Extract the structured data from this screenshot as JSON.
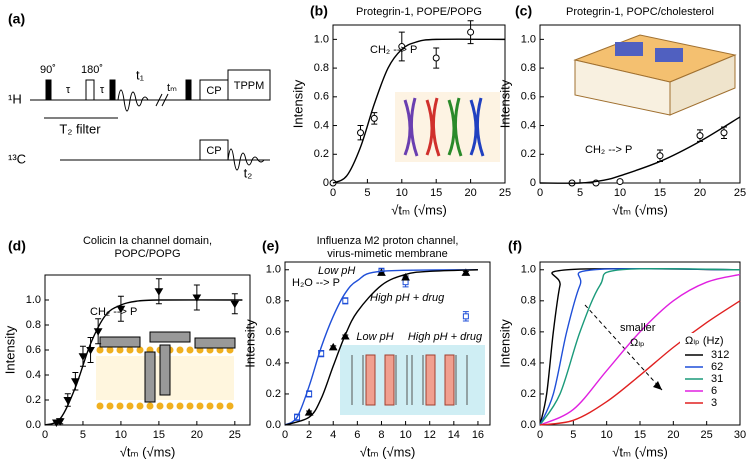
{
  "pulse_sequence": {
    "panel": "(a)",
    "h_channel": "¹H",
    "c_channel": "¹³C",
    "pulse_90": "90˚",
    "pulse_180": "180˚",
    "tau_1": "τ",
    "tau_2": "τ",
    "t1": "t₁",
    "filter": "T₂ filter",
    "tm": "tₘ",
    "cp_h": "CP",
    "tppm": "TPPM",
    "cp_c": "CP",
    "t2": "t₂"
  },
  "chart_data": [
    {
      "type": "line",
      "panel": "(b)",
      "title": [
        "Protegrin-1, POPE/POPG"
      ],
      "xlabel": "√tₘ (√ms)",
      "ylabel": "Intensity",
      "xlim": [
        0,
        25
      ],
      "xticks": [
        0,
        5,
        10,
        15,
        20,
        25
      ],
      "ylim": [
        0,
        1.1
      ],
      "yticks": [
        0,
        0.2,
        0.4,
        0.6,
        0.8,
        {
          "value": 1,
          "label": "1.0"
        }
      ],
      "series": [
        {
          "color": "#000000",
          "marker": "circle-open",
          "x": [
            0,
            4,
            6,
            10,
            15,
            20
          ],
          "values": [
            0,
            0.35,
            0.45,
            0.95,
            0.87,
            1.05
          ],
          "errors": [
            null,
            0.05,
            0.04,
            0.1,
            0.07,
            0.08
          ]
        },
        {
          "color": "#000000",
          "marker": "none",
          "x": [
            0,
            2,
            4,
            6,
            8,
            10,
            12,
            15,
            25
          ],
          "values": [
            0,
            0.05,
            0.25,
            0.55,
            0.8,
            0.93,
            0.98,
            1.0,
            1.0
          ]
        }
      ],
      "annotations": [
        {
          "text": "CH₂ --> P",
          "color": "#e01010"
        }
      ]
    },
    {
      "type": "line",
      "panel": "(c)",
      "title": [
        "Protegrin-1, POPC/cholesterol"
      ],
      "xlabel": "√tₘ (√ms)",
      "ylabel": "Intensity",
      "xlim": [
        0,
        25
      ],
      "xticks": [
        0,
        5,
        10,
        15,
        20,
        25
      ],
      "ylim": [
        0,
        1.1
      ],
      "yticks": [
        0,
        0.2,
        0.4,
        0.6,
        0.8,
        {
          "value": 1,
          "label": "1.0"
        }
      ],
      "series": [
        {
          "color": "#000000",
          "marker": "circle-open",
          "x": [
            4,
            7,
            10,
            15,
            20,
            23
          ],
          "values": [
            0,
            0,
            0.01,
            0.19,
            0.33,
            0.35
          ],
          "errors": [
            0.01,
            0.01,
            0.01,
            0.04,
            0.04,
            0.04
          ]
        },
        {
          "color": "#000000",
          "marker": "none",
          "x": [
            0,
            5,
            8,
            10,
            15,
            20,
            25
          ],
          "values": [
            0,
            0,
            0.02,
            0.05,
            0.15,
            0.29,
            0.46
          ]
        }
      ],
      "annotations": [
        {
          "text": "CH₂ --> P",
          "color": "#e01010"
        }
      ]
    },
    {
      "type": "line",
      "panel": "(d)",
      "title": [
        "Colicin Ia channel domain,",
        "POPC/POPG"
      ],
      "xlabel": "√tₘ (√ms)",
      "ylabel": "Intensity",
      "xlim": [
        0,
        27
      ],
      "xticks": [
        0,
        5,
        10,
        15,
        20,
        25
      ],
      "ylim": [
        0,
        1.2
      ],
      "yticks": [
        {
          "value": 0,
          "label": "0.0"
        },
        0.2,
        0.4,
        0.6,
        0.8,
        {
          "value": 1,
          "label": "1.0"
        }
      ],
      "series": [
        {
          "color": "#000000",
          "marker": "triangle-down",
          "x": [
            1.5,
            2,
            3,
            4,
            5,
            6,
            7,
            10,
            15,
            20,
            25
          ],
          "values": [
            0.02,
            0.03,
            0.2,
            0.35,
            0.55,
            0.6,
            0.75,
            0.93,
            1.07,
            1.02,
            0.97
          ],
          "errors": [
            0.02,
            0.02,
            0.05,
            0.07,
            0.08,
            0.1,
            0.1,
            0.1,
            0.1,
            0.1,
            0.08
          ]
        },
        {
          "color": "#000000",
          "marker": "none",
          "x": [
            0,
            2,
            4,
            6,
            8,
            10,
            12,
            15,
            26
          ],
          "values": [
            0,
            0.05,
            0.3,
            0.65,
            0.88,
            0.96,
            0.99,
            1.0,
            1.0
          ]
        }
      ],
      "annotations": [
        {
          "text": "CH₂ --> P",
          "color": "#e01010"
        }
      ]
    },
    {
      "type": "line",
      "panel": "(e)",
      "title": [
        "Influenza M2 proton channel,",
        "virus-mimetic membrane"
      ],
      "xlabel": "√tₘ (√ms)",
      "ylabel": "Intensity",
      "xlim": [
        0,
        17
      ],
      "xticks": [
        0,
        2,
        4,
        6,
        8,
        10,
        12,
        14,
        16
      ],
      "ylim": [
        0,
        1.05
      ],
      "yticks": [
        {
          "value": 0,
          "label": "0.0"
        },
        0.2,
        0.4,
        0.6,
        0.8,
        {
          "value": 1,
          "label": "1.0"
        }
      ],
      "series": [
        {
          "name": "Low pH",
          "color": "#1f4fd8",
          "marker": "square-open",
          "x": [
            1,
            2,
            3,
            5,
            8,
            10,
            15
          ],
          "values": [
            0.05,
            0.2,
            0.46,
            0.8,
            0.99,
            0.92,
            0.7
          ],
          "errors": [
            0.02,
            0.02,
            0.02,
            0.02,
            0.02,
            0.03,
            0.03
          ]
        },
        {
          "name": "High pH + drug",
          "color": "#000000",
          "marker": "triangle",
          "x": [
            2,
            4,
            5,
            8,
            10,
            15
          ],
          "values": [
            0.08,
            0.5,
            0.57,
            0.98,
            0.95,
            0.98
          ],
          "errors": [
            0.01,
            0.01,
            0.01,
            0.01,
            0.01,
            0.01
          ]
        },
        {
          "color": "#1f4fd8",
          "marker": "none",
          "x": [
            0,
            1,
            2,
            3,
            4,
            5,
            6,
            8,
            16
          ],
          "values": [
            0,
            0.05,
            0.25,
            0.5,
            0.7,
            0.85,
            0.93,
            0.99,
            1.0
          ]
        },
        {
          "color": "#000000",
          "marker": "none",
          "x": [
            0,
            2,
            3,
            4,
            5,
            6,
            8,
            10,
            12,
            16
          ],
          "values": [
            0,
            0.05,
            0.17,
            0.38,
            0.58,
            0.73,
            0.9,
            0.97,
            0.99,
            1.0
          ]
        }
      ],
      "annotations": [
        {
          "text": "H₂O --> P",
          "color": "#e01010"
        },
        {
          "text": "Low pH",
          "color": "#1f4fd8"
        },
        {
          "text": "High pH + drug",
          "color": "#000000"
        }
      ]
    },
    {
      "type": "line",
      "panel": "(f)",
      "xlabel": "√tₘ (√ms)",
      "ylabel": "Intensity",
      "legend_title": "Ωₗₚ (Hz)",
      "xlim": [
        0,
        30
      ],
      "xticks": [
        0,
        5,
        10,
        15,
        20,
        25,
        30
      ],
      "ylim": [
        0,
        1.05
      ],
      "yticks": [
        {
          "value": 0,
          "label": "0.0"
        },
        0.2,
        0.4,
        0.6,
        0.8,
        {
          "value": 1,
          "label": "1.0"
        }
      ],
      "series": [
        {
          "name": "312",
          "color": "#000000",
          "marker": "none",
          "x": [
            0,
            1,
            2,
            3,
            4,
            30
          ],
          "values": [
            0,
            0.2,
            0.6,
            0.9,
            1.0,
            1.0
          ]
        },
        {
          "name": "62",
          "color": "#1f4fd8",
          "marker": "none",
          "x": [
            0,
            2,
            4,
            6,
            8,
            30
          ],
          "values": [
            0,
            0.2,
            0.6,
            0.9,
            1.0,
            1.0
          ]
        },
        {
          "name": "31",
          "color": "#1a9a7a",
          "marker": "none",
          "x": [
            0,
            3,
            6,
            9,
            12,
            30
          ],
          "values": [
            0,
            0.2,
            0.6,
            0.9,
            1.0,
            1.0
          ]
        },
        {
          "name": "6",
          "color": "#e020e0",
          "marker": "none",
          "x": [
            0,
            5,
            10,
            15,
            20,
            25,
            30
          ],
          "values": [
            0,
            0.1,
            0.35,
            0.6,
            0.8,
            0.92,
            0.97
          ]
        },
        {
          "name": "3",
          "color": "#e02020",
          "marker": "none",
          "x": [
            0,
            5,
            10,
            15,
            20,
            25,
            30
          ],
          "values": [
            0,
            0.03,
            0.15,
            0.32,
            0.5,
            0.66,
            0.8
          ]
        }
      ],
      "annotations": [
        {
          "text": "smaller",
          "color": "#000000"
        },
        {
          "text": "Ωₗₚ",
          "color": "#000000"
        }
      ]
    }
  ]
}
